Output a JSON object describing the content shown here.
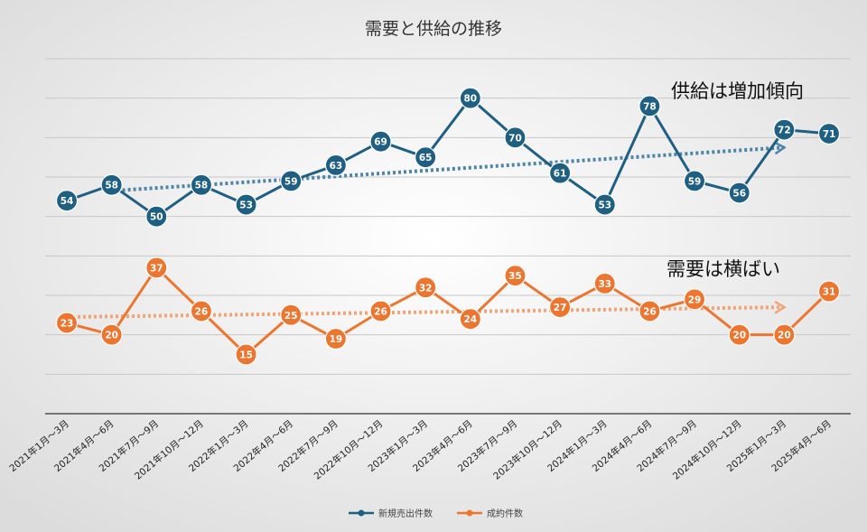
{
  "chart_data": {
    "type": "line",
    "title": "需要と供給の推移",
    "categories": [
      "2021年1月～3月",
      "2021年4月～6月",
      "2021年7月～9月",
      "2021年10月～12月",
      "2022年1月～3月",
      "2022年4月～6月",
      "2022年7月～9月",
      "2022年10月～12月",
      "2023年1月～3月",
      "2023年4月～6月",
      "2023年7月～9月",
      "2023年10月～12月",
      "2024年1月～3月",
      "2024年4月～6月",
      "2024年7月～9月",
      "2024年10月～12月",
      "2025年1月～3月",
      "2025年4月～6月"
    ],
    "series": [
      {
        "name": "新規売出件数",
        "color": "#1f5f82",
        "values": [
          54,
          58,
          50,
          58,
          53,
          59,
          63,
          69,
          65,
          80,
          70,
          61,
          53,
          78,
          59,
          56,
          72,
          71
        ]
      },
      {
        "name": "成約件数",
        "color": "#ec7630",
        "values": [
          23,
          20,
          37,
          26,
          15,
          25,
          19,
          26,
          32,
          24,
          35,
          27,
          33,
          26,
          29,
          20,
          20,
          31
        ]
      }
    ],
    "ylim": [
      0,
      90
    ],
    "grid": true,
    "legend": "bottom",
    "trendlines": [
      {
        "series": "新規売出件数",
        "color": "#4d85a8",
        "from": [
          1,
          56.5
        ],
        "to": [
          16,
          67.5
        ]
      },
      {
        "series": "成約件数",
        "color": "#f2a477",
        "from": [
          0,
          24.5
        ],
        "to": [
          16,
          27
        ]
      }
    ],
    "annotations": [
      {
        "text": "供給は増加傾向"
      },
      {
        "text": "需要は横ばい"
      }
    ]
  }
}
